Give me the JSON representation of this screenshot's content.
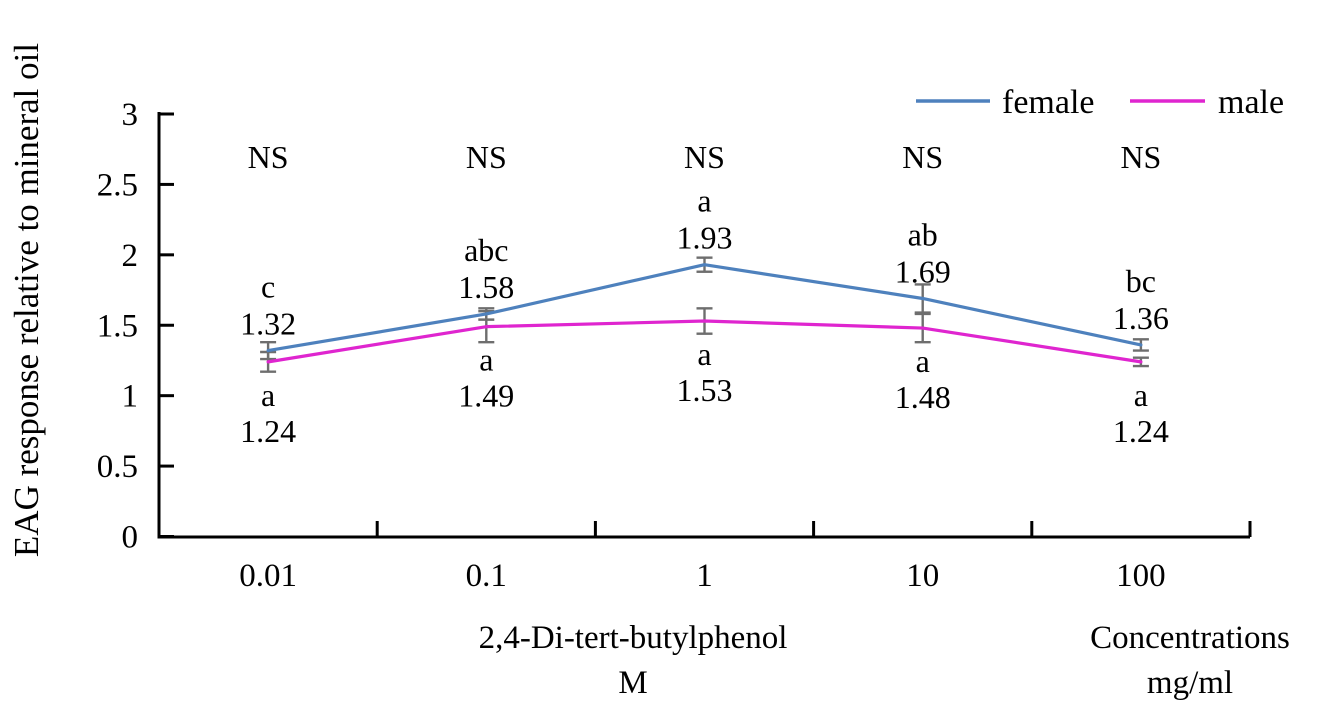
{
  "figure": {
    "kind": "statistical line chart",
    "background": "#ffffff"
  },
  "chart_data": {
    "type": "line",
    "title": "",
    "ylabel": "EAG response relative to mineral oil",
    "x_axis_captions": [
      {
        "line1": "2,4-Di-tert-butylphenol",
        "line2": "M"
      },
      {
        "line1": "Concentrations",
        "line2": "mg/ml"
      }
    ],
    "categories": [
      "0.01",
      "0.1",
      "1",
      "10",
      "100"
    ],
    "ylim": [
      0,
      3
    ],
    "yticks": [
      0,
      0.5,
      1,
      1.5,
      2,
      2.5,
      3
    ],
    "ytick_labels": [
      "0",
      "0.5",
      "1",
      "1.5",
      "2",
      "2.5",
      "3"
    ],
    "grid": false,
    "ns_labels": [
      "NS",
      "NS",
      "NS",
      "NS",
      "NS"
    ],
    "error_bar_color": "#6e6e6e",
    "axis_color": "#000000",
    "series": [
      {
        "name": "female",
        "color": "#4e81bd",
        "values": [
          1.32,
          1.58,
          1.93,
          1.69,
          1.36
        ],
        "value_labels": [
          "1.32",
          "1.58",
          "1.93",
          "1.69",
          "1.36"
        ],
        "errors": [
          0.06,
          0.04,
          0.05,
          0.1,
          0.04
        ],
        "letters": [
          "c",
          "abc",
          "a",
          "ab",
          "bc"
        ],
        "label_side": "above"
      },
      {
        "name": "male",
        "color": "#df25cf",
        "values": [
          1.24,
          1.49,
          1.53,
          1.48,
          1.24
        ],
        "value_labels": [
          "1.24",
          "1.49",
          "1.53",
          "1.48",
          "1.24"
        ],
        "errors": [
          0.07,
          0.11,
          0.09,
          0.1,
          0.03
        ],
        "letters": [
          "a",
          "a",
          "a",
          "a",
          "a"
        ],
        "label_side": "below"
      }
    ],
    "legend": {
      "position": "top-right",
      "items": [
        {
          "label": "female",
          "color": "#4e81bd"
        },
        {
          "label": "male",
          "color": "#df25cf"
        }
      ]
    }
  }
}
